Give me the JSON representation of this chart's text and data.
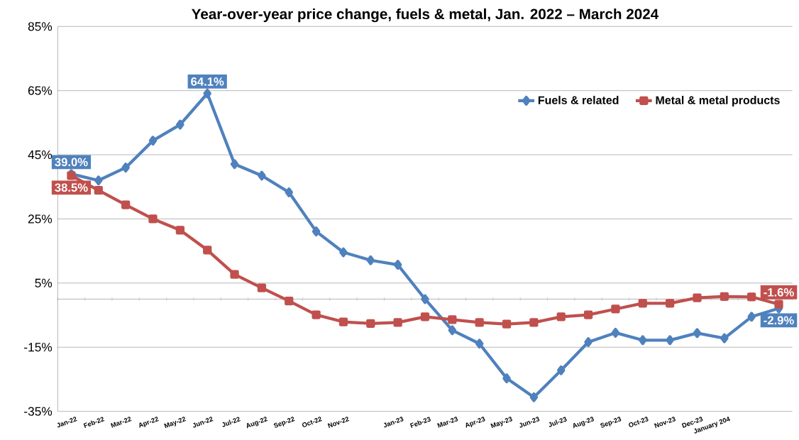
{
  "chart_data": {
    "type": "line",
    "title": "Year-over-year price change, fuels & metal, Jan. 2022 – March  2024",
    "categories": [
      "Jan-22",
      "Feb-22",
      "Mar-22",
      "Apr-22",
      "May-22",
      "Jun-22",
      "Jul-22",
      "Aug-22",
      "Sep-22",
      "Oct-22",
      "Nov-22",
      null,
      "Jan-23",
      "Feb-23",
      "Mar-23",
      "Apr-23",
      "May-23",
      "Jun-23",
      "Jul-23",
      "Aug-23",
      "Sep-23",
      "Oct-23",
      "Nov-23",
      "Dec-23",
      "January 204",
      null,
      null
    ],
    "series": [
      {
        "name": "Fuels & related",
        "color": "#4f81bd",
        "marker": "diamond",
        "values": [
          39.0,
          37.0,
          41.0,
          49.4,
          54.4,
          64.1,
          42.1,
          38.5,
          33.3,
          21.1,
          14.6,
          12.1,
          10.7,
          0.0,
          -9.7,
          -13.9,
          -24.7,
          -30.6,
          -22.2,
          -13.4,
          -10.5,
          -12.8,
          -12.8,
          -10.6,
          -12.2,
          -5.5,
          -2.9
        ],
        "value_labels": [
          "39.0%",
          null,
          null,
          null,
          null,
          "64.1%",
          null,
          null,
          null,
          null,
          null,
          null,
          null,
          null,
          null,
          null,
          null,
          null,
          null,
          null,
          null,
          null,
          null,
          null,
          null,
          null,
          "-2.9%"
        ]
      },
      {
        "name": "Metal & metal products",
        "color": "#c0504d",
        "marker": "square",
        "values": [
          38.5,
          33.9,
          29.4,
          25.0,
          21.5,
          15.3,
          7.7,
          3.5,
          -0.6,
          -4.9,
          -7.1,
          -7.6,
          -7.3,
          -5.5,
          -6.4,
          -7.3,
          -7.8,
          -7.3,
          -5.5,
          -4.9,
          -3.1,
          -1.3,
          -1.3,
          0.4,
          0.8,
          0.7,
          -1.6
        ],
        "value_labels": [
          "38.5%",
          null,
          null,
          null,
          null,
          null,
          null,
          null,
          null,
          null,
          null,
          null,
          null,
          null,
          null,
          null,
          null,
          null,
          null,
          null,
          null,
          null,
          null,
          null,
          null,
          null,
          "-1.6%"
        ]
      }
    ],
    "ylim": [
      -35,
      85
    ],
    "yticks": [
      {
        "value": -35,
        "label": "-35%"
      },
      {
        "value": -15,
        "label": "-15%"
      },
      {
        "value": 5,
        "label": "5%"
      },
      {
        "value": 25,
        "label": "25%"
      },
      {
        "value": 45,
        "label": "45%"
      },
      {
        "value": 65,
        "label": "65%"
      },
      {
        "value": 85,
        "label": "85%"
      }
    ],
    "grid": "y",
    "legend": "top right",
    "line_style": "solid"
  }
}
